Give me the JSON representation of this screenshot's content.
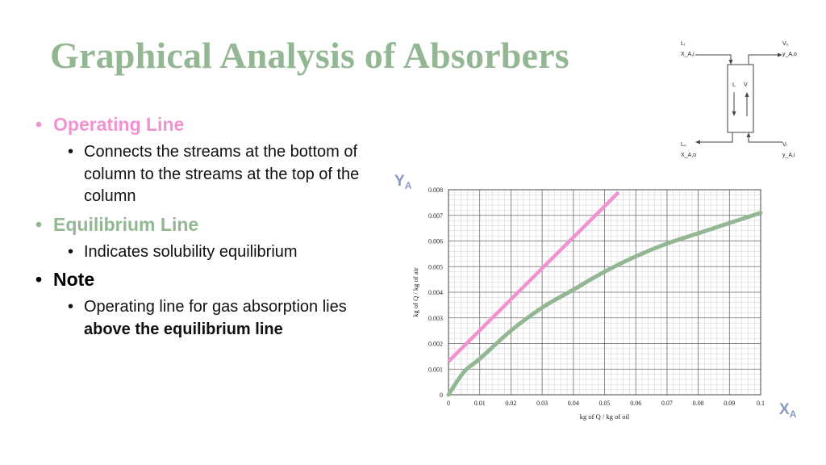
{
  "title": "Graphical Analysis of Absorbers",
  "bullets": [
    {
      "heading": "Operating Line",
      "sub": "Connects the streams at the bottom of column to the streams at the top of the column"
    },
    {
      "heading": "Equilibrium Line",
      "sub": "Indicates solubility equilibrium"
    },
    {
      "heading": "Note",
      "sub_plain": "Operating line for gas absorption lies ",
      "sub_bold": "above the equilibrium line"
    }
  ],
  "axis_labels": {
    "y_main": "Y",
    "y_sub": "A",
    "x_main": "X",
    "x_sub": "A"
  },
  "colors": {
    "title": "#93b793",
    "operating": "#f093d0",
    "equilibrium": "#93b793",
    "axis_labels": "#8a98c4"
  },
  "diagram": {
    "top_left": [
      "Lᵢ",
      "X_A,i"
    ],
    "top_right": [
      "V₀",
      "y_A,o"
    ],
    "bottom_left": [
      "L₀",
      "X_A,o"
    ],
    "bottom_right": [
      "Vᵢ",
      "y_A,i"
    ],
    "inside": [
      "L",
      "V"
    ]
  },
  "chart_data": {
    "type": "line",
    "xlabel": "kg of Q / kg of oil",
    "ylabel": "kg of Q / kg of air",
    "xlim": [
      0,
      0.1
    ],
    "ylim": [
      0,
      0.008
    ],
    "x_ticks": [
      "0",
      "0.01",
      "0.02",
      "0.03",
      "0.04",
      "0.05",
      "0.06",
      "0.07",
      "0.08",
      "0.09",
      "0.1"
    ],
    "y_ticks": [
      "0",
      "0.001",
      "0.002",
      "0.003",
      "0.004",
      "0.005",
      "0.006",
      "0.007",
      "0.008"
    ],
    "grid": true,
    "series": [
      {
        "name": "Operating Line",
        "color": "#f093d0",
        "x": [
          0,
          0.0545
        ],
        "y": [
          0.0013,
          0.0079
        ]
      },
      {
        "name": "Equilibrium Line",
        "color": "#93b793",
        "x": [
          0,
          0.005,
          0.01,
          0.02,
          0.03,
          0.04,
          0.05,
          0.06,
          0.07,
          0.08,
          0.09,
          0.1
        ],
        "y": [
          0,
          0.0009,
          0.0014,
          0.0025,
          0.0034,
          0.0041,
          0.0048,
          0.0054,
          0.0059,
          0.0063,
          0.0067,
          0.0071
        ]
      }
    ]
  }
}
